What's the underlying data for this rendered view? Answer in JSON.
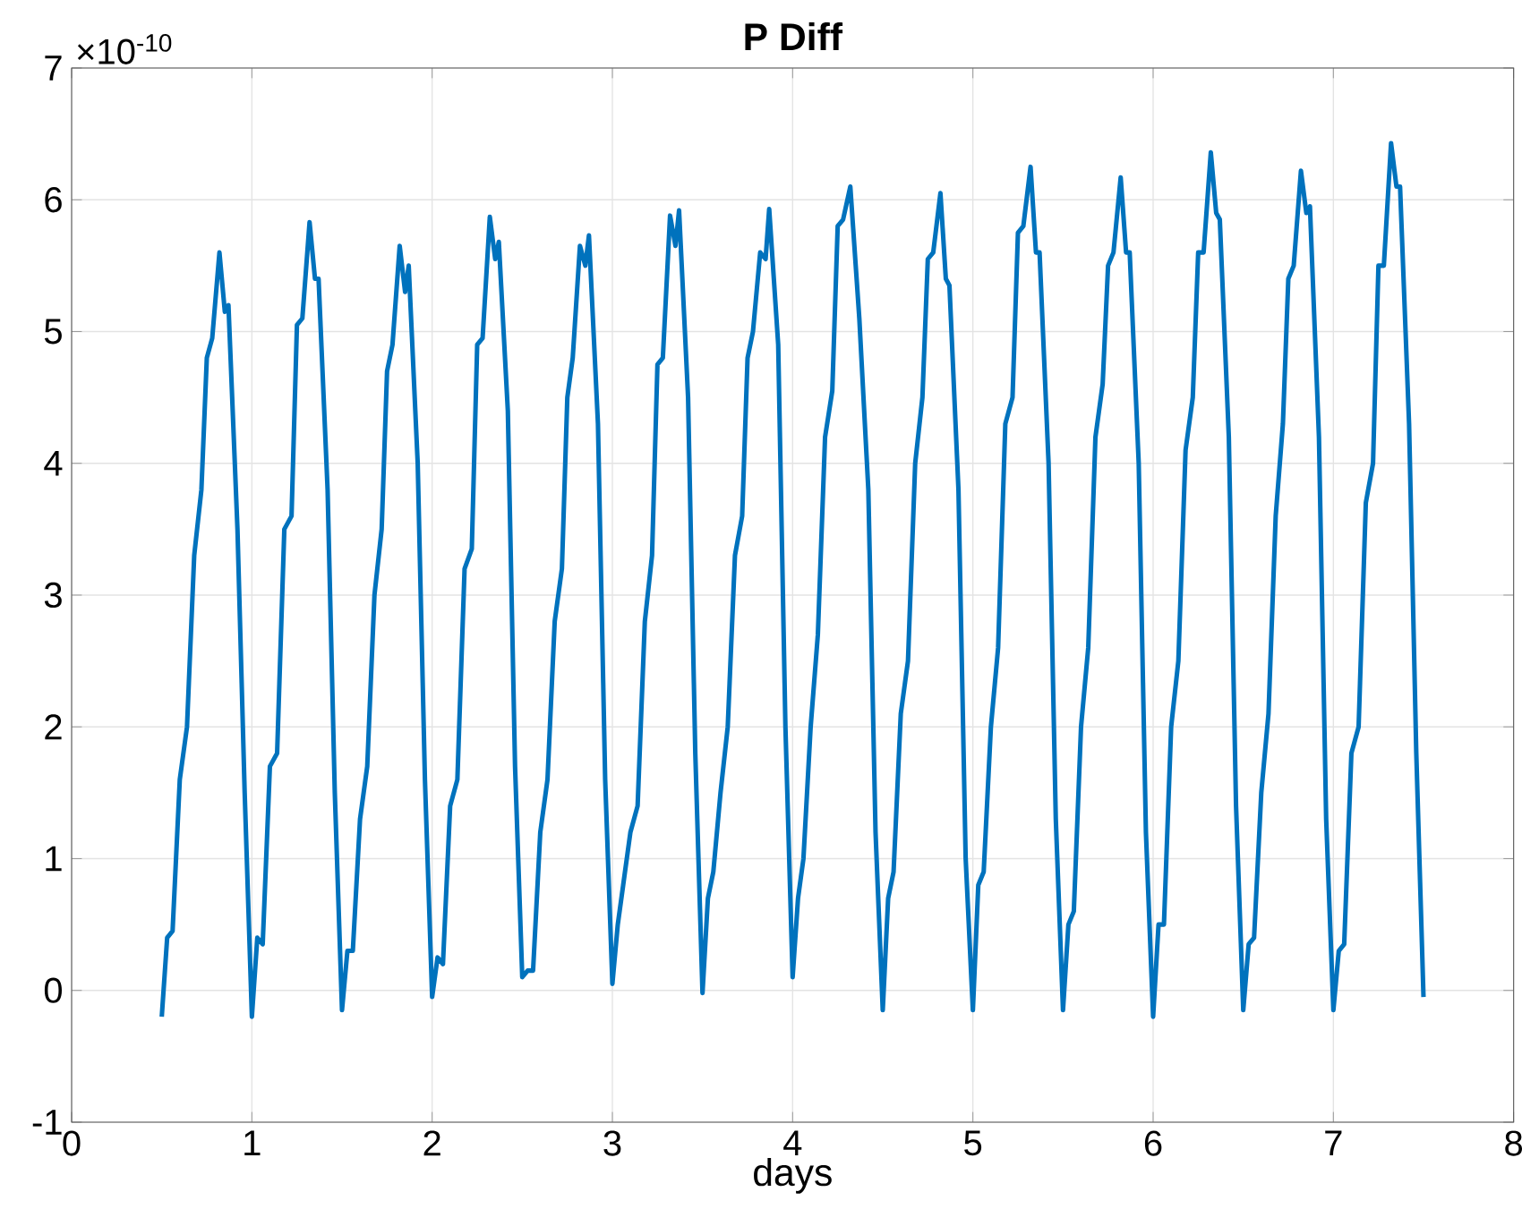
{
  "chart_data": {
    "type": "line",
    "title": "P Diff",
    "xlabel": "days",
    "annotations": [
      "×10$^{-10}$"
    ],
    "xlim": [
      0,
      8
    ],
    "ylim": [
      -1,
      7
    ],
    "xticks": [
      0,
      1,
      2,
      3,
      4,
      5,
      6,
      7,
      8
    ],
    "yticks": [
      -1,
      0,
      1,
      2,
      3,
      4,
      5,
      6,
      7
    ],
    "grid": true,
    "line_style": "solid",
    "marker": "none",
    "series": [
      {
        "color": "#0072bd",
        "x": [
          0.5,
          0.53,
          0.56,
          0.6,
          0.64,
          0.68,
          0.72,
          0.75,
          0.78,
          0.82,
          0.85,
          0.87,
          0.92,
          0.96,
          1.0,
          1.03,
          1.06,
          1.1,
          1.14,
          1.18,
          1.22,
          1.25,
          1.28,
          1.32,
          1.35,
          1.37,
          1.42,
          1.46,
          1.5,
          1.53,
          1.56,
          1.6,
          1.64,
          1.68,
          1.72,
          1.75,
          1.78,
          1.82,
          1.85,
          1.87,
          1.92,
          1.96,
          2.0,
          2.03,
          2.06,
          2.1,
          2.14,
          2.18,
          2.22,
          2.25,
          2.28,
          2.32,
          2.35,
          2.37,
          2.42,
          2.46,
          2.5,
          2.53,
          2.56,
          2.6,
          2.64,
          2.68,
          2.72,
          2.75,
          2.78,
          2.82,
          2.85,
          2.87,
          2.92,
          2.96,
          3.0,
          3.03,
          3.06,
          3.1,
          3.14,
          3.18,
          3.22,
          3.25,
          3.28,
          3.32,
          3.35,
          3.37,
          3.42,
          3.46,
          3.5,
          3.53,
          3.56,
          3.6,
          3.64,
          3.68,
          3.72,
          3.75,
          3.78,
          3.82,
          3.85,
          3.87,
          3.92,
          3.96,
          4.0,
          4.03,
          4.06,
          4.1,
          4.14,
          4.18,
          4.22,
          4.25,
          4.28,
          4.32,
          4.35,
          4.37,
          4.42,
          4.46,
          4.5,
          4.53,
          4.56,
          4.6,
          4.64,
          4.68,
          4.72,
          4.75,
          4.78,
          4.82,
          4.85,
          4.87,
          4.92,
          4.96,
          5.0,
          5.03,
          5.06,
          5.1,
          5.14,
          5.18,
          5.22,
          5.25,
          5.28,
          5.32,
          5.35,
          5.37,
          5.42,
          5.46,
          5.5,
          5.53,
          5.56,
          5.6,
          5.64,
          5.68,
          5.72,
          5.75,
          5.78,
          5.82,
          5.85,
          5.87,
          5.92,
          5.96,
          6.0,
          6.03,
          6.06,
          6.1,
          6.14,
          6.18,
          6.22,
          6.25,
          6.28,
          6.32,
          6.35,
          6.37,
          6.42,
          6.46,
          6.5,
          6.53,
          6.56,
          6.6,
          6.64,
          6.68,
          6.72,
          6.75,
          6.78,
          6.82,
          6.85,
          6.87,
          6.92,
          6.96,
          7.0,
          7.03,
          7.06,
          7.1,
          7.14,
          7.18,
          7.22,
          7.25,
          7.28,
          7.32,
          7.35,
          7.37,
          7.42,
          7.46,
          7.5
        ],
        "values": [
          -0.2,
          0.4,
          0.45,
          1.6,
          2.0,
          3.3,
          3.8,
          4.8,
          4.95,
          5.6,
          5.15,
          5.2,
          3.5,
          1.5,
          -0.2,
          0.4,
          0.35,
          1.7,
          1.8,
          3.5,
          3.6,
          5.05,
          5.1,
          5.83,
          5.4,
          5.4,
          3.8,
          1.5,
          -0.15,
          0.3,
          0.3,
          1.3,
          1.7,
          3.0,
          3.5,
          4.7,
          4.9,
          5.65,
          5.3,
          5.5,
          4.0,
          1.6,
          -0.05,
          0.25,
          0.2,
          1.4,
          1.6,
          3.2,
          3.35,
          4.9,
          4.95,
          5.87,
          5.55,
          5.68,
          4.4,
          1.7,
          0.1,
          0.15,
          0.15,
          1.2,
          1.6,
          2.8,
          3.2,
          4.5,
          4.8,
          5.65,
          5.5,
          5.73,
          4.3,
          1.6,
          0.05,
          0.5,
          0.8,
          1.2,
          1.4,
          2.8,
          3.3,
          4.75,
          4.8,
          5.88,
          5.65,
          5.92,
          4.5,
          1.8,
          -0.02,
          0.7,
          0.9,
          1.5,
          2.0,
          3.3,
          3.6,
          4.8,
          5.0,
          5.6,
          5.55,
          5.93,
          4.9,
          2.0,
          0.1,
          0.7,
          1.0,
          2.0,
          2.7,
          4.2,
          4.55,
          5.8,
          5.85,
          6.1,
          5.5,
          5.1,
          3.8,
          1.2,
          -0.15,
          0.7,
          0.9,
          2.1,
          2.5,
          4.0,
          4.5,
          5.55,
          5.6,
          6.05,
          5.4,
          5.35,
          3.8,
          1.0,
          -0.15,
          0.8,
          0.9,
          2.0,
          2.6,
          4.3,
          4.5,
          5.75,
          5.8,
          6.25,
          5.6,
          5.6,
          4.0,
          1.3,
          -0.15,
          0.5,
          0.6,
          2.0,
          2.6,
          4.2,
          4.6,
          5.5,
          5.6,
          6.17,
          5.6,
          5.6,
          4.0,
          1.2,
          -0.2,
          0.5,
          0.5,
          2.0,
          2.5,
          4.1,
          4.5,
          5.6,
          5.6,
          6.36,
          5.9,
          5.85,
          4.2,
          1.4,
          -0.15,
          0.35,
          0.4,
          1.5,
          2.1,
          3.6,
          4.3,
          5.4,
          5.5,
          6.22,
          5.9,
          5.95,
          4.2,
          1.3,
          -0.15,
          0.3,
          0.35,
          1.8,
          2.0,
          3.7,
          4.0,
          5.5,
          5.5,
          6.43,
          6.1,
          6.1,
          4.3,
          1.8,
          -0.05
        ]
      }
    ]
  }
}
